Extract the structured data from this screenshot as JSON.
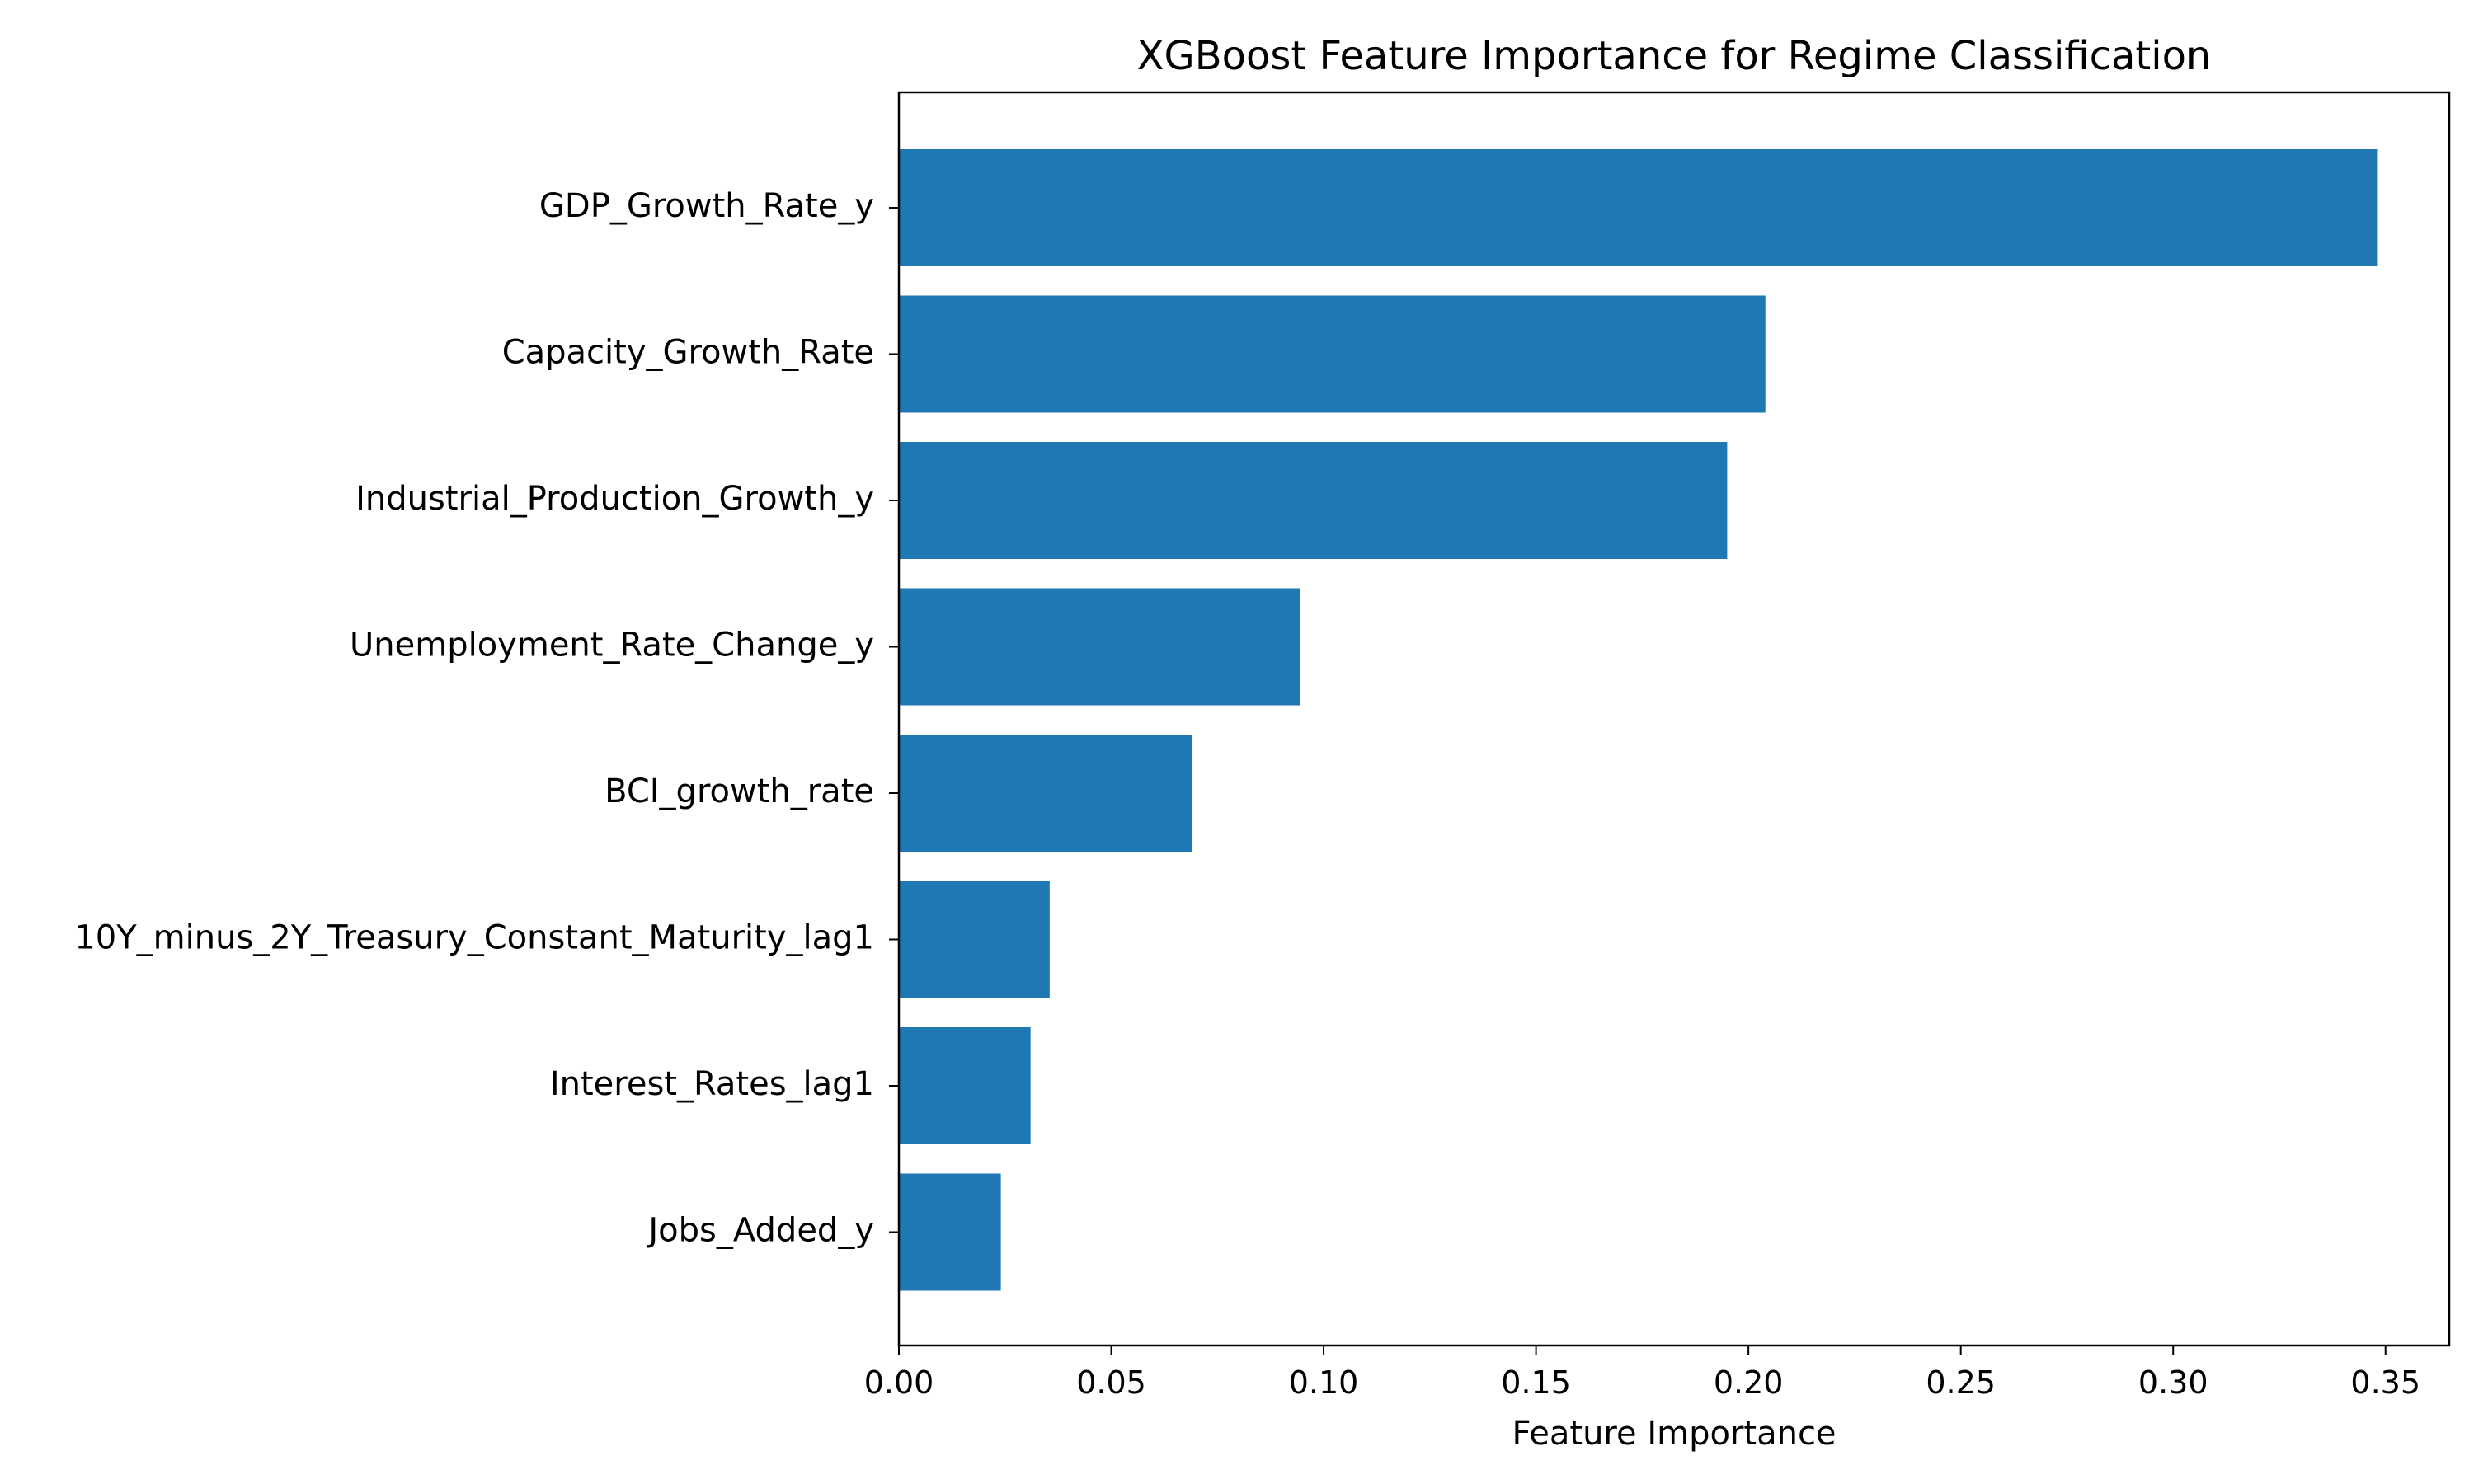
{
  "chart_data": {
    "type": "bar",
    "orientation": "horizontal",
    "title": "XGBoost Feature Importance for Regime Classification",
    "xlabel": "Feature Importance",
    "ylabel": "",
    "categories": [
      "GDP_Growth_Rate_y",
      "Capacity_Growth_Rate",
      "Industrial_Production_Growth_y",
      "Unemployment_Rate_Change_y",
      "BCI_growth_rate",
      "10Y_minus_2Y_Treasury_Constant_Maturity_lag1",
      "Interest_Rates_lag1",
      "Jobs_Added_y"
    ],
    "values": [
      0.348,
      0.204,
      0.195,
      0.0945,
      0.069,
      0.0355,
      0.031,
      0.024
    ],
    "xlim": [
      0,
      0.365
    ],
    "xticks": [
      "0.00",
      "0.05",
      "0.10",
      "0.15",
      "0.20",
      "0.25",
      "0.30",
      "0.35"
    ],
    "bar_color": "#1f77b4",
    "grid": false,
    "legend": "none"
  }
}
